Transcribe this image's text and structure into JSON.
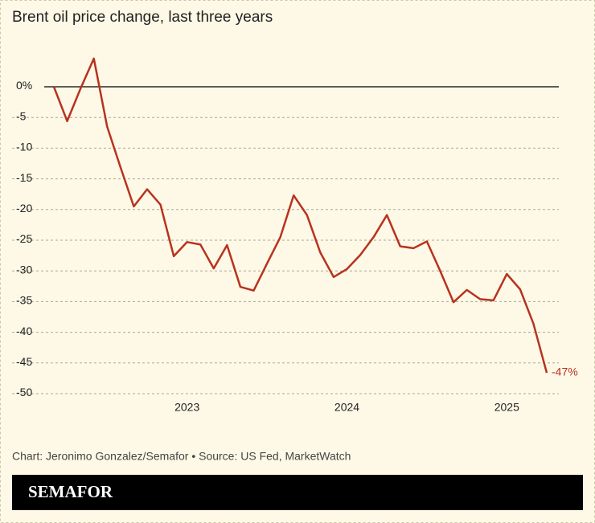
{
  "chart_data": {
    "type": "line",
    "title": "Brent oil price change, last three years",
    "categories": [
      null,
      null,
      null,
      null,
      null,
      null,
      null,
      null,
      null,
      null,
      "2023",
      null,
      null,
      null,
      null,
      null,
      null,
      null,
      null,
      null,
      null,
      null,
      "2024",
      null,
      null,
      null,
      null,
      null,
      null,
      null,
      null,
      null,
      null,
      null,
      "2025",
      null,
      null,
      null
    ],
    "series": [
      {
        "name": "Brent oil price change",
        "color": "#b8321f",
        "values": [
          0,
          -5.6,
          -0.3,
          4.6,
          -6.5,
          -13.1,
          -19.5,
          -16.7,
          -19.2,
          -27.6,
          -25.3,
          -25.7,
          -29.6,
          -25.8,
          -32.6,
          -33.2,
          -28.8,
          -24.5,
          -17.7,
          -20.9,
          -27.0,
          -31.0,
          -29.7,
          -27.4,
          -24.5,
          -20.9,
          -26.0,
          -26.3,
          -25.2,
          -30.0,
          -35.1,
          -33.1,
          -34.6,
          -34.8,
          -30.5,
          -33.0,
          -38.6,
          -46.6
        ],
        "value_labels": [
          null,
          null,
          null,
          null,
          null,
          null,
          null,
          null,
          null,
          null,
          null,
          null,
          null,
          null,
          null,
          null,
          null,
          null,
          null,
          null,
          null,
          null,
          null,
          null,
          null,
          null,
          null,
          null,
          null,
          null,
          null,
          null,
          null,
          null,
          null,
          null,
          null,
          "-47%"
        ]
      }
    ],
    "ylim": [
      -50,
      0
    ],
    "yticks": [
      {
        "value": 0,
        "label": "0%"
      },
      -5,
      -10,
      -15,
      -20,
      -25,
      -30,
      -35,
      -40,
      -45,
      -50
    ],
    "grid": true,
    "credit": "Chart: Jeronimo Gonzalez/Semafor • Source: US Fed, MarketWatch",
    "brand": "SEMAFOR"
  }
}
